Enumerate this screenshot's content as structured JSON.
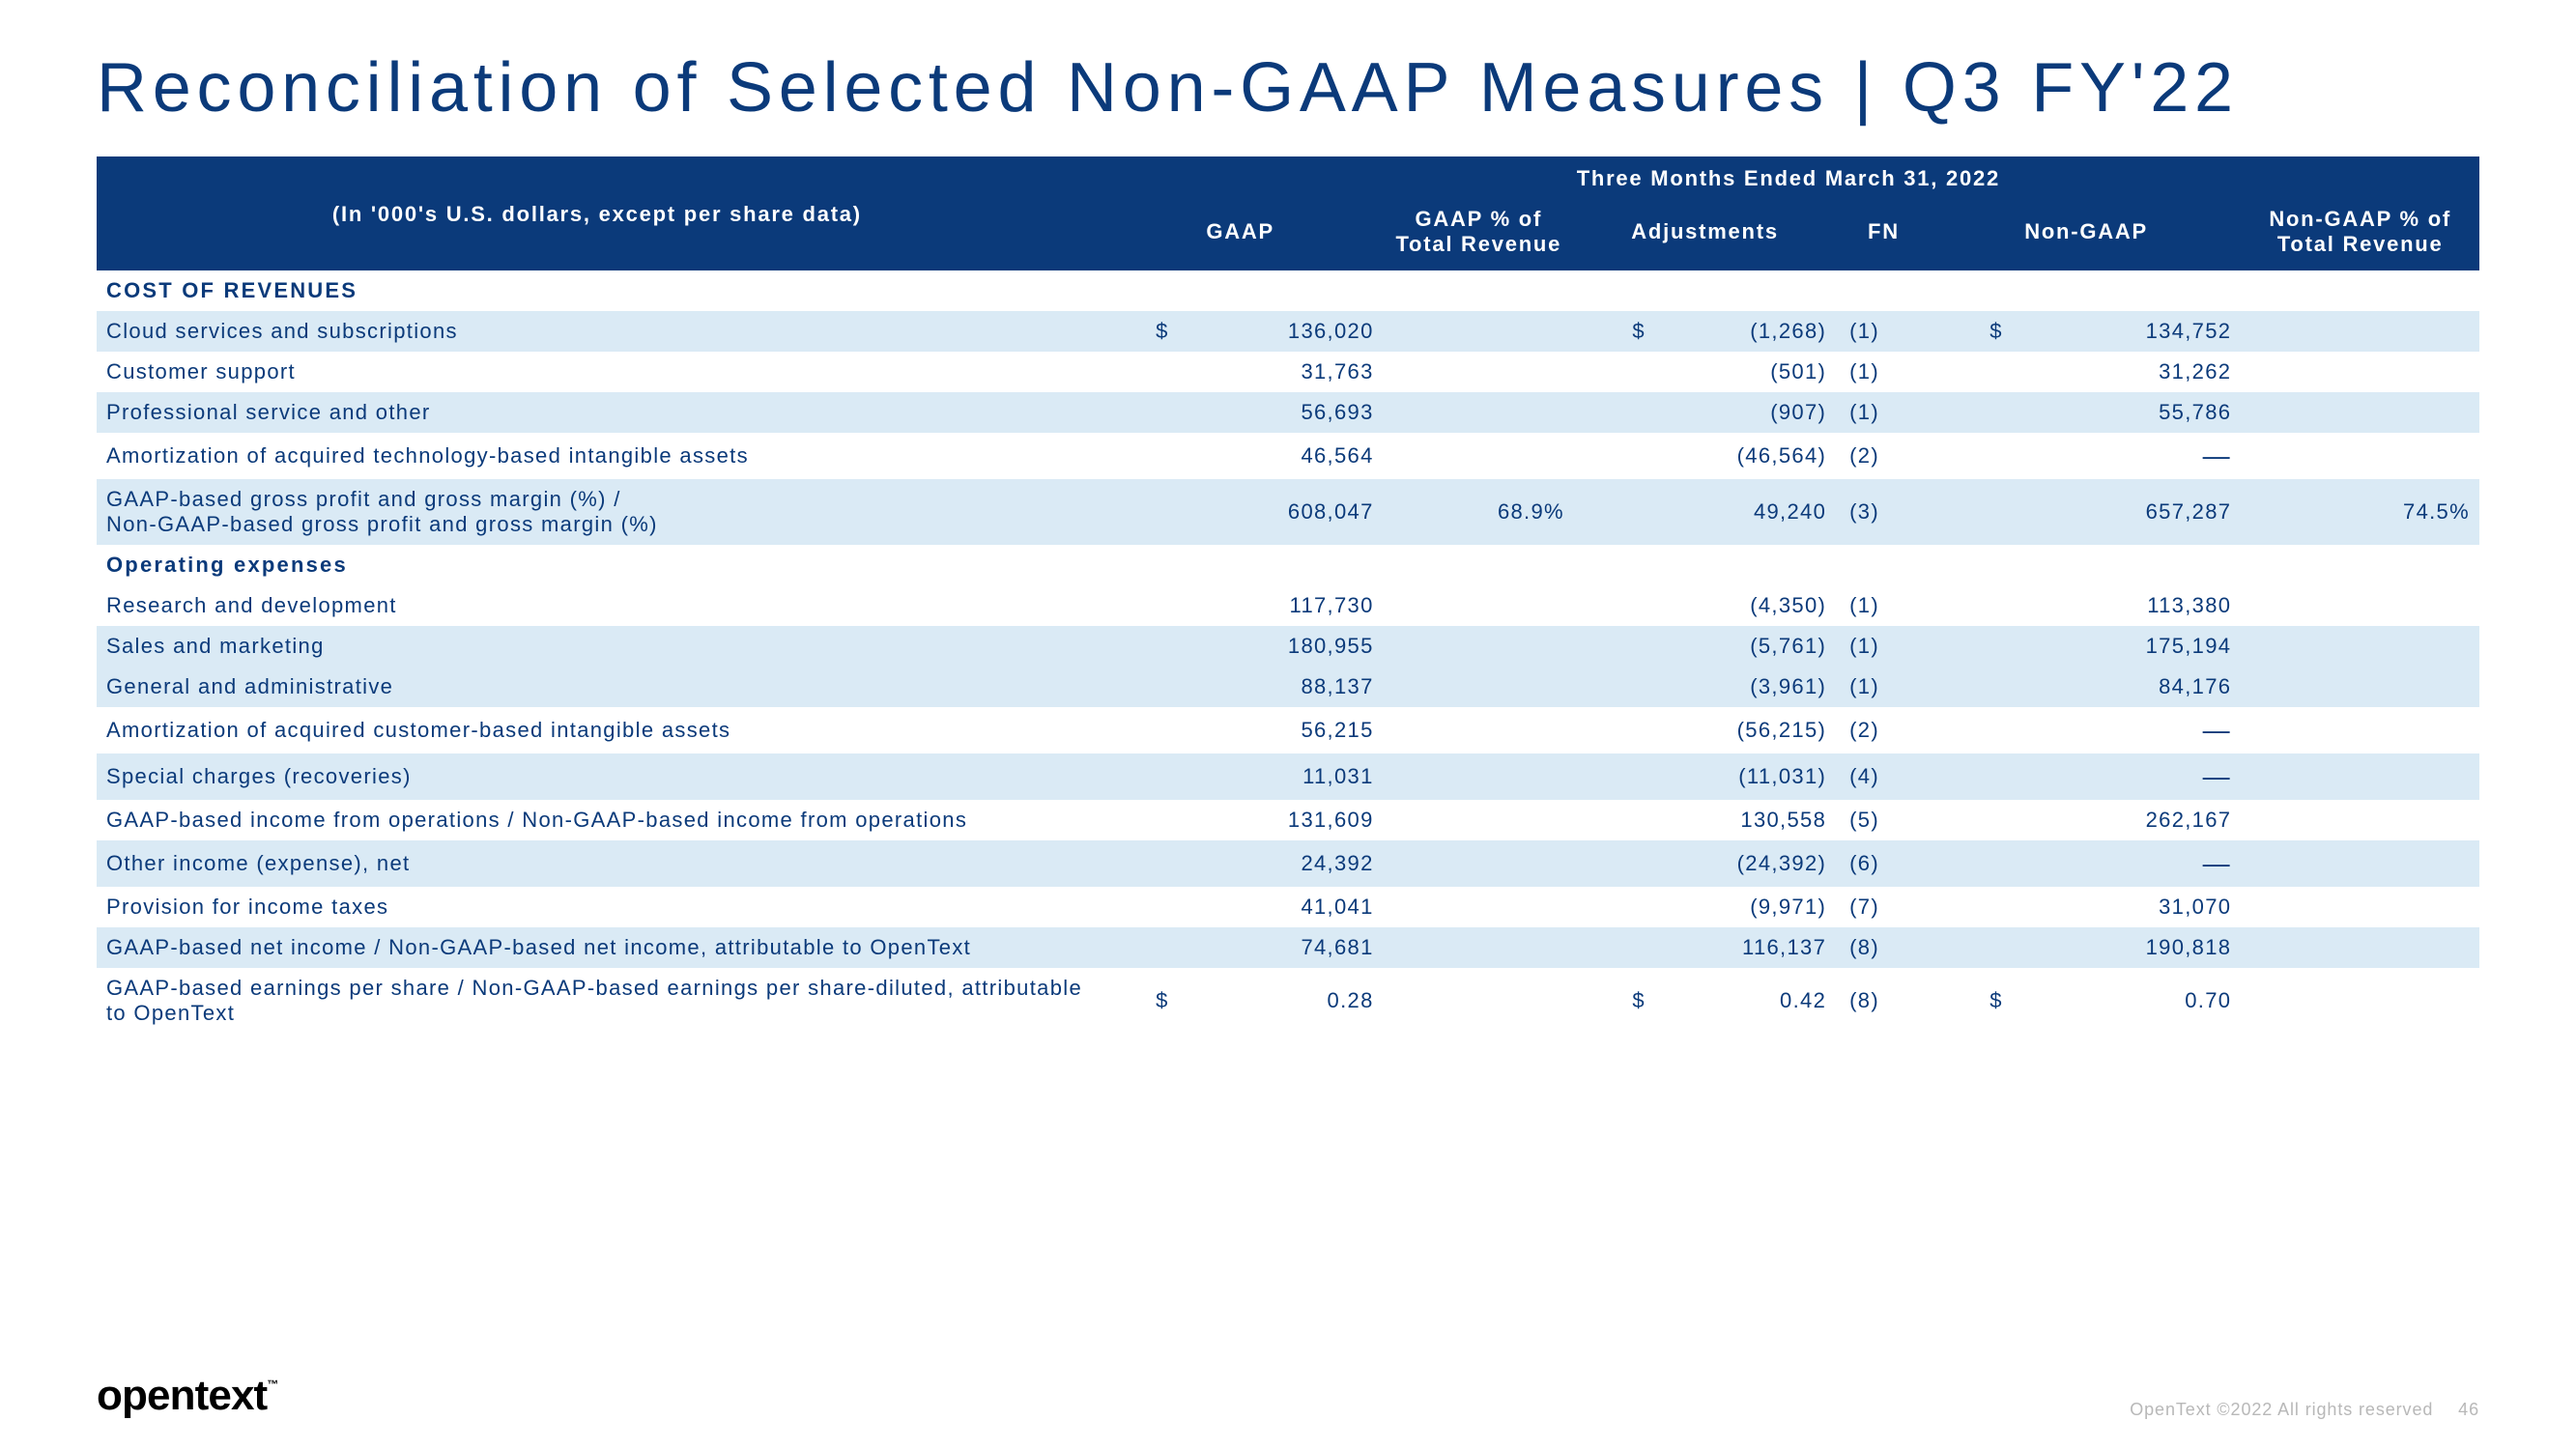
{
  "title": "Reconciliation of Selected Non-GAAP Measures | Q3 FY'22",
  "period_header": "Three Months Ended March 31, 2022",
  "subtitle": "(In '000's U.S. dollars, except per share data)",
  "columns": {
    "gaap": "GAAP",
    "gaap_pct": "GAAP % of Total Revenue",
    "adj": "Adjustments",
    "fn": "FN",
    "nongaap": "Non-GAAP",
    "nongaap_pct": "Non-GAAP % of Total Revenue"
  },
  "section1": "COST OF REVENUES",
  "section2": "Operating expenses",
  "rows": {
    "r1": {
      "label": "Cloud services and subscriptions",
      "s1": "$",
      "gaap": "136,020",
      "pct": "",
      "s2": "$",
      "adj": "(1,268)",
      "fn": "(1)",
      "s3": "$",
      "ng": "134,752",
      "ngpct": ""
    },
    "r2": {
      "label": "Customer support",
      "s1": "",
      "gaap": "31,763",
      "pct": "",
      "s2": "",
      "adj": "(501)",
      "fn": "(1)",
      "s3": "",
      "ng": "31,262",
      "ngpct": ""
    },
    "r3": {
      "label": "Professional service and other",
      "s1": "",
      "gaap": "56,693",
      "pct": "",
      "s2": "",
      "adj": "(907)",
      "fn": "(1)",
      "s3": "",
      "ng": "55,786",
      "ngpct": ""
    },
    "r4": {
      "label": "Amortization of acquired technology-based intangible assets",
      "s1": "",
      "gaap": "46,564",
      "pct": "",
      "s2": "",
      "adj": "(46,564)",
      "fn": "(2)",
      "s3": "",
      "ng": "—",
      "ngpct": ""
    },
    "r5": {
      "label": "GAAP-based gross profit and gross margin (%) /\nNon-GAAP-based gross profit and gross margin (%)",
      "s1": "",
      "gaap": "608,047",
      "pct": "68.9%",
      "s2": "",
      "adj": "49,240",
      "fn": "(3)",
      "s3": "",
      "ng": "657,287",
      "ngpct": "74.5%"
    },
    "r6": {
      "label": "Research and development",
      "s1": "",
      "gaap": "117,730",
      "pct": "",
      "s2": "",
      "adj": "(4,350)",
      "fn": "(1)",
      "s3": "",
      "ng": "113,380",
      "ngpct": ""
    },
    "r7": {
      "label": "Sales and marketing",
      "s1": "",
      "gaap": "180,955",
      "pct": "",
      "s2": "",
      "adj": "(5,761)",
      "fn": "(1)",
      "s3": "",
      "ng": "175,194",
      "ngpct": ""
    },
    "r8": {
      "label": "General and administrative",
      "s1": "",
      "gaap": "88,137",
      "pct": "",
      "s2": "",
      "adj": "(3,961)",
      "fn": "(1)",
      "s3": "",
      "ng": "84,176",
      "ngpct": ""
    },
    "r9": {
      "label": "Amortization of acquired customer-based intangible assets",
      "s1": "",
      "gaap": "56,215",
      "pct": "",
      "s2": "",
      "adj": "(56,215)",
      "fn": "(2)",
      "s3": "",
      "ng": "—",
      "ngpct": ""
    },
    "r10": {
      "label": "Special charges (recoveries)",
      "s1": "",
      "gaap": "11,031",
      "pct": "",
      "s2": "",
      "adj": "(11,031)",
      "fn": "(4)",
      "s3": "",
      "ng": "—",
      "ngpct": ""
    },
    "r11": {
      "label": "GAAP-based income from operations / Non-GAAP-based income from operations",
      "s1": "",
      "gaap": "131,609",
      "pct": "",
      "s2": "",
      "adj": "130,558",
      "fn": "(5)",
      "s3": "",
      "ng": "262,167",
      "ngpct": ""
    },
    "r12": {
      "label": "Other income (expense), net",
      "s1": "",
      "gaap": "24,392",
      "pct": "",
      "s2": "",
      "adj": "(24,392)",
      "fn": "(6)",
      "s3": "",
      "ng": "—",
      "ngpct": ""
    },
    "r13": {
      "label": "Provision for income taxes",
      "s1": "",
      "gaap": "41,041",
      "pct": "",
      "s2": "",
      "adj": "(9,971)",
      "fn": "(7)",
      "s3": "",
      "ng": "31,070",
      "ngpct": ""
    },
    "r14": {
      "label": "GAAP-based net income / Non-GAAP-based net income, attributable to OpenText",
      "s1": "",
      "gaap": "74,681",
      "pct": "",
      "s2": "",
      "adj": "116,137",
      "fn": "(8)",
      "s3": "",
      "ng": "190,818",
      "ngpct": ""
    },
    "r15": {
      "label": "GAAP-based earnings per share / Non-GAAP-based earnings per share-diluted, attributable to OpenText",
      "s1": "$",
      "gaap": "0.28",
      "pct": "",
      "s2": "$",
      "adj": "0.42",
      "fn": "(8)",
      "s3": "$",
      "ng": "0.70",
      "ngpct": ""
    }
  },
  "logo": "opentext",
  "tm": "™",
  "copyright": "OpenText ©2022 All rights reserved",
  "page_number": "46",
  "colors": {
    "brand_navy": "#0b3a7a",
    "row_alt": "#daeaf5",
    "bg": "#ffffff",
    "footer_grey": "#b8b8b8"
  }
}
